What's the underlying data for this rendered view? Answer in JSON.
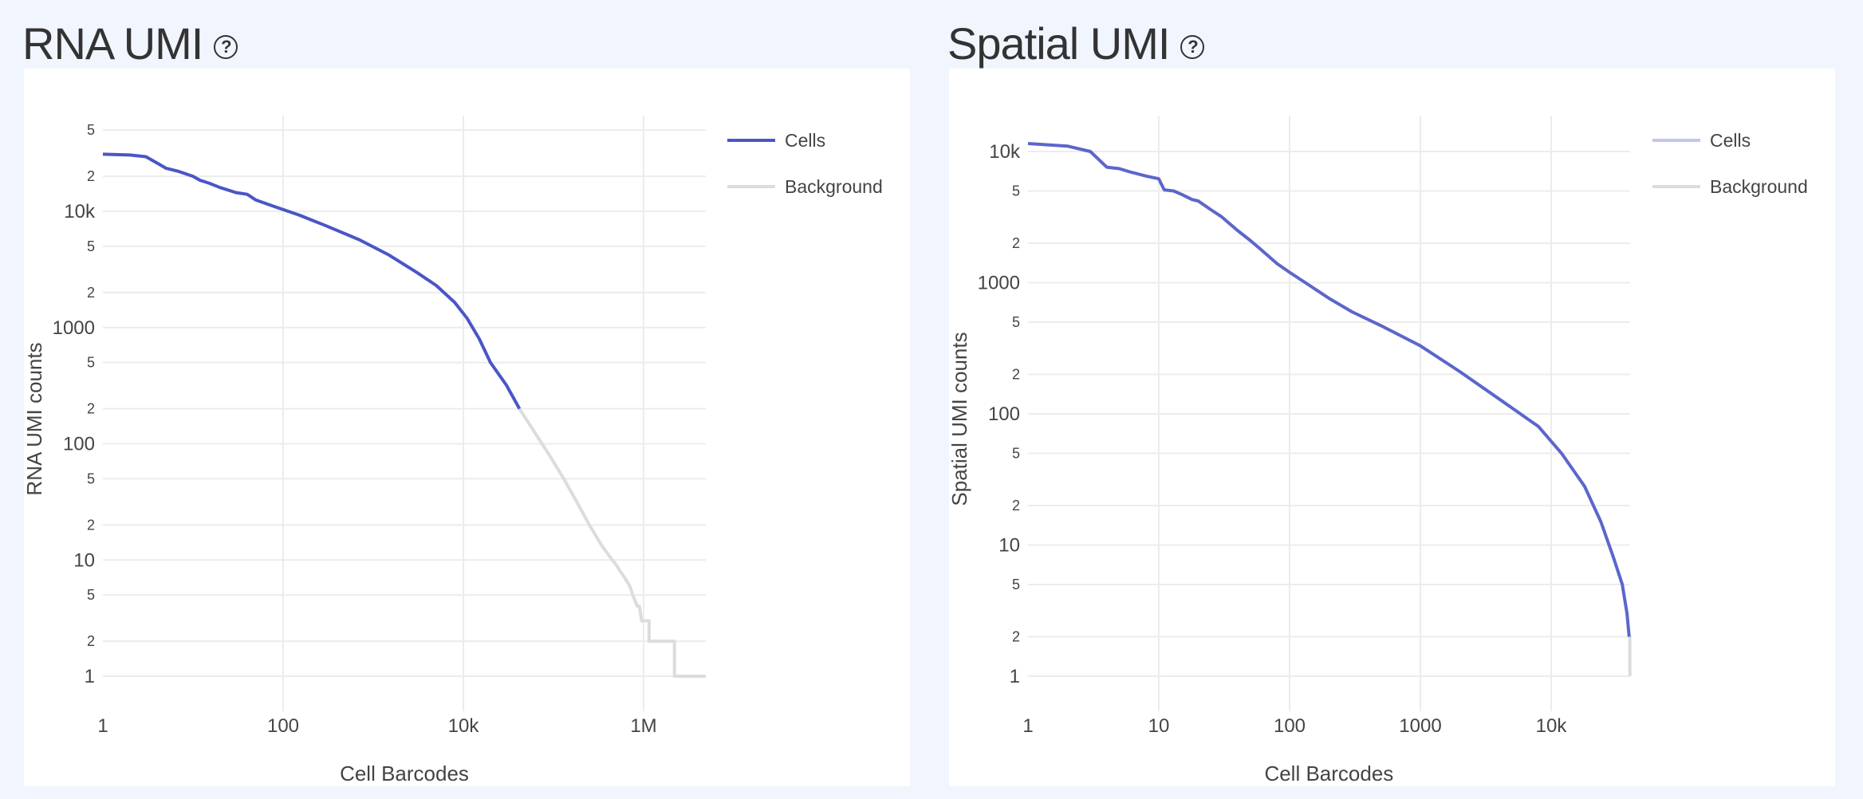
{
  "panels": [
    {
      "title": "RNA UMI",
      "help_icon": "question-circle-icon"
    },
    {
      "title": "Spatial UMI",
      "help_icon": "question-circle-icon"
    }
  ],
  "chart_data": [
    {
      "type": "line",
      "title": "RNA UMI",
      "xlabel": "Cell Barcodes",
      "ylabel": "RNA UMI counts",
      "xscale": "log",
      "yscale": "log",
      "xlim": [
        1,
        4900000
      ],
      "ylim": [
        0.55,
        60000
      ],
      "x_ticks": [
        {
          "v": 1,
          "label": "1"
        },
        {
          "v": 100,
          "label": "100"
        },
        {
          "v": 10000,
          "label": "10k"
        },
        {
          "v": 1000000,
          "label": "1M"
        }
      ],
      "y_ticks": [
        {
          "v": 1,
          "label": "1",
          "major": true
        },
        {
          "v": 2,
          "label": "2"
        },
        {
          "v": 5,
          "label": "5"
        },
        {
          "v": 10,
          "label": "10",
          "major": true
        },
        {
          "v": 20,
          "label": "2"
        },
        {
          "v": 50,
          "label": "5"
        },
        {
          "v": 100,
          "label": "100",
          "major": true
        },
        {
          "v": 200,
          "label": "2"
        },
        {
          "v": 500,
          "label": "5"
        },
        {
          "v": 1000,
          "label": "1000",
          "major": true
        },
        {
          "v": 2000,
          "label": "2"
        },
        {
          "v": 5000,
          "label": "5"
        },
        {
          "v": 10000,
          "label": "10k",
          "major": true
        },
        {
          "v": 20000,
          "label": "2"
        },
        {
          "v": 50000,
          "label": "5"
        }
      ],
      "grid": true,
      "legend_position": "right-top",
      "series": [
        {
          "name": "Cells",
          "color": "#4a56c6",
          "points": [
            [
              1,
              31000
            ],
            [
              2,
              30500
            ],
            [
              3,
              29500
            ],
            [
              4,
              26000
            ],
            [
              5,
              23500
            ],
            [
              7,
              22000
            ],
            [
              10,
              20000
            ],
            [
              12,
              18500
            ],
            [
              15,
              17500
            ],
            [
              20,
              16000
            ],
            [
              30,
              14500
            ],
            [
              40,
              14000
            ],
            [
              50,
              12500
            ],
            [
              80,
              11000
            ],
            [
              150,
              9300
            ],
            [
              300,
              7500
            ],
            [
              700,
              5700
            ],
            [
              1500,
              4200
            ],
            [
              3000,
              3000
            ],
            [
              5000,
              2300
            ],
            [
              8000,
              1650
            ],
            [
              11000,
              1200
            ],
            [
              15000,
              800
            ],
            [
              20000,
              500
            ],
            [
              30000,
              320
            ],
            [
              42000,
              200
            ]
          ]
        },
        {
          "name": "Background",
          "color": "#dcdcdc",
          "points": [
            [
              42000,
              200
            ],
            [
              60000,
              130
            ],
            [
              90000,
              80
            ],
            [
              130000,
              50
            ],
            [
              180000,
              32
            ],
            [
              250000,
              20
            ],
            [
              350000,
              13
            ],
            [
              450000,
              10
            ],
            [
              500000,
              9
            ],
            [
              550000,
              8
            ],
            [
              620000,
              7
            ],
            [
              700000,
              6
            ],
            [
              760000,
              5
            ],
            [
              850000,
              4
            ],
            [
              900000,
              4
            ],
            [
              950000,
              3
            ],
            [
              1150000,
              3
            ],
            [
              1150000,
              2
            ],
            [
              2200000,
              2
            ],
            [
              2200000,
              1
            ],
            [
              4900000,
              1
            ]
          ]
        }
      ]
    },
    {
      "type": "line",
      "title": "Spatial UMI",
      "xlabel": "Cell Barcodes",
      "ylabel": "Spatial UMI counts",
      "xscale": "log",
      "yscale": "log",
      "xlim": [
        1,
        40000
      ],
      "ylim": [
        0.5,
        20000
      ],
      "x_ticks": [
        {
          "v": 1,
          "label": "1"
        },
        {
          "v": 10,
          "label": "10"
        },
        {
          "v": 100,
          "label": "100"
        },
        {
          "v": 1000,
          "label": "1000"
        },
        {
          "v": 10000,
          "label": "10k"
        }
      ],
      "y_ticks": [
        {
          "v": 1,
          "label": "1",
          "major": true
        },
        {
          "v": 2,
          "label": "2"
        },
        {
          "v": 5,
          "label": "5"
        },
        {
          "v": 10,
          "label": "10",
          "major": true
        },
        {
          "v": 20,
          "label": "2"
        },
        {
          "v": 50,
          "label": "5"
        },
        {
          "v": 100,
          "label": "100",
          "major": true
        },
        {
          "v": 200,
          "label": "2"
        },
        {
          "v": 500,
          "label": "5"
        },
        {
          "v": 1000,
          "label": "1000",
          "major": true
        },
        {
          "v": 2000,
          "label": "2"
        },
        {
          "v": 5000,
          "label": "5"
        },
        {
          "v": 10000,
          "label": "10k",
          "major": true
        }
      ],
      "grid": true,
      "legend_position": "right-top",
      "series": [
        {
          "name": "Cells",
          "color": "#5b66cc",
          "legend_color": "#c3c6ee",
          "points": [
            [
              1,
              11500
            ],
            [
              2,
              11000
            ],
            [
              3,
              10000
            ],
            [
              4,
              7600
            ],
            [
              5,
              7400
            ],
            [
              6,
              7000
            ],
            [
              8,
              6500
            ],
            [
              10,
              6200
            ],
            [
              11,
              5100
            ],
            [
              13,
              5000
            ],
            [
              15,
              4700
            ],
            [
              18,
              4300
            ],
            [
              20,
              4200
            ],
            [
              25,
              3600
            ],
            [
              30,
              3200
            ],
            [
              35,
              2800
            ],
            [
              40,
              2500
            ],
            [
              50,
              2100
            ],
            [
              60,
              1800
            ],
            [
              80,
              1400
            ],
            [
              100,
              1200
            ],
            [
              150,
              920
            ],
            [
              200,
              760
            ],
            [
              300,
              600
            ],
            [
              500,
              470
            ],
            [
              1000,
              330
            ],
            [
              2000,
              210
            ],
            [
              4000,
              130
            ],
            [
              8000,
              80
            ],
            [
              12000,
              50
            ],
            [
              18000,
              28
            ],
            [
              24000,
              15
            ],
            [
              30000,
              8
            ],
            [
              35000,
              5
            ],
            [
              38000,
              3
            ],
            [
              39500,
              2
            ]
          ]
        },
        {
          "name": "Background",
          "color": "#dcdcdc",
          "points": [
            [
              39500,
              2
            ],
            [
              40000,
              2
            ],
            [
              40000,
              1
            ]
          ]
        }
      ]
    }
  ]
}
